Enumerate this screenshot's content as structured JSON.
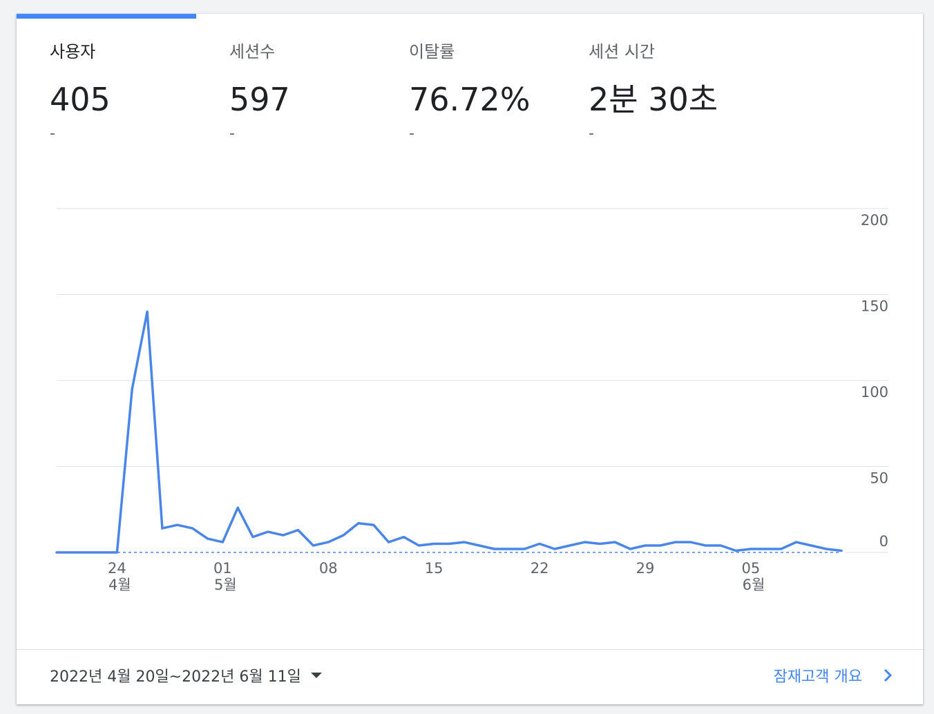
{
  "metrics": [
    {
      "label": "사용자",
      "value": "405",
      "change": "-",
      "active": true
    },
    {
      "label": "세션수",
      "value": "597",
      "change": "-",
      "active": false
    },
    {
      "label": "이탈률",
      "value": "76.72%",
      "change": "-",
      "active": false
    },
    {
      "label": "세션 시간",
      "value": "2분 30초",
      "change": "-",
      "active": false
    }
  ],
  "footer": {
    "date_range": "2022년 4월 20일~2022년 6월 11일",
    "report_link": "잠재고객 개요"
  },
  "colors": {
    "accent": "#4285f4",
    "line": "#4a86e8",
    "grid": "#e0e0e0"
  },
  "chart_data": {
    "type": "line",
    "title": "",
    "xlabel": "",
    "ylabel": "",
    "ylim": [
      0,
      200
    ],
    "yticks": [
      0,
      50,
      100,
      150,
      200
    ],
    "y_axis_position": "right",
    "grid": true,
    "x_tick_labels": [
      {
        "day": "24",
        "month": "4월"
      },
      {
        "day": "01",
        "month": "5월"
      },
      {
        "day": "08",
        "month": ""
      },
      {
        "day": "15",
        "month": ""
      },
      {
        "day": "22",
        "month": ""
      },
      {
        "day": "29",
        "month": ""
      },
      {
        "day": "05",
        "month": "6월"
      }
    ],
    "x_tick_dates": [
      "2022-04-24",
      "2022-05-01",
      "2022-05-08",
      "2022-05-15",
      "2022-05-22",
      "2022-05-29",
      "2022-06-05"
    ],
    "series": [
      {
        "dates": [
          "2022-04-20",
          "2022-04-21",
          "2022-04-22",
          "2022-04-23",
          "2022-04-24",
          "2022-04-25",
          "2022-04-26",
          "2022-04-27",
          "2022-04-28",
          "2022-04-29",
          "2022-04-30",
          "2022-05-01",
          "2022-05-02",
          "2022-05-03",
          "2022-05-04",
          "2022-05-05",
          "2022-05-06",
          "2022-05-07",
          "2022-05-08",
          "2022-05-09",
          "2022-05-10",
          "2022-05-11",
          "2022-05-12",
          "2022-05-13",
          "2022-05-14",
          "2022-05-15",
          "2022-05-16",
          "2022-05-17",
          "2022-05-18",
          "2022-05-19",
          "2022-05-20",
          "2022-05-21",
          "2022-05-22",
          "2022-05-23",
          "2022-05-24",
          "2022-05-25",
          "2022-05-26",
          "2022-05-27",
          "2022-05-28",
          "2022-05-29",
          "2022-05-30",
          "2022-05-31",
          "2022-06-01",
          "2022-06-02",
          "2022-06-03",
          "2022-06-04",
          "2022-06-05",
          "2022-06-06",
          "2022-06-07",
          "2022-06-08",
          "2022-06-09",
          "2022-06-10",
          "2022-06-11"
        ],
        "values": [
          0,
          0,
          0,
          0,
          0,
          95,
          140,
          14,
          16,
          14,
          8,
          6,
          26,
          9,
          12,
          10,
          13,
          4,
          6,
          10,
          17,
          16,
          6,
          9,
          4,
          5,
          5,
          6,
          4,
          2,
          2,
          2,
          5,
          2,
          4,
          6,
          5,
          6,
          2,
          4,
          4,
          6,
          6,
          4,
          4,
          1,
          2,
          2,
          2,
          6,
          4,
          2,
          1
        ]
      }
    ]
  }
}
